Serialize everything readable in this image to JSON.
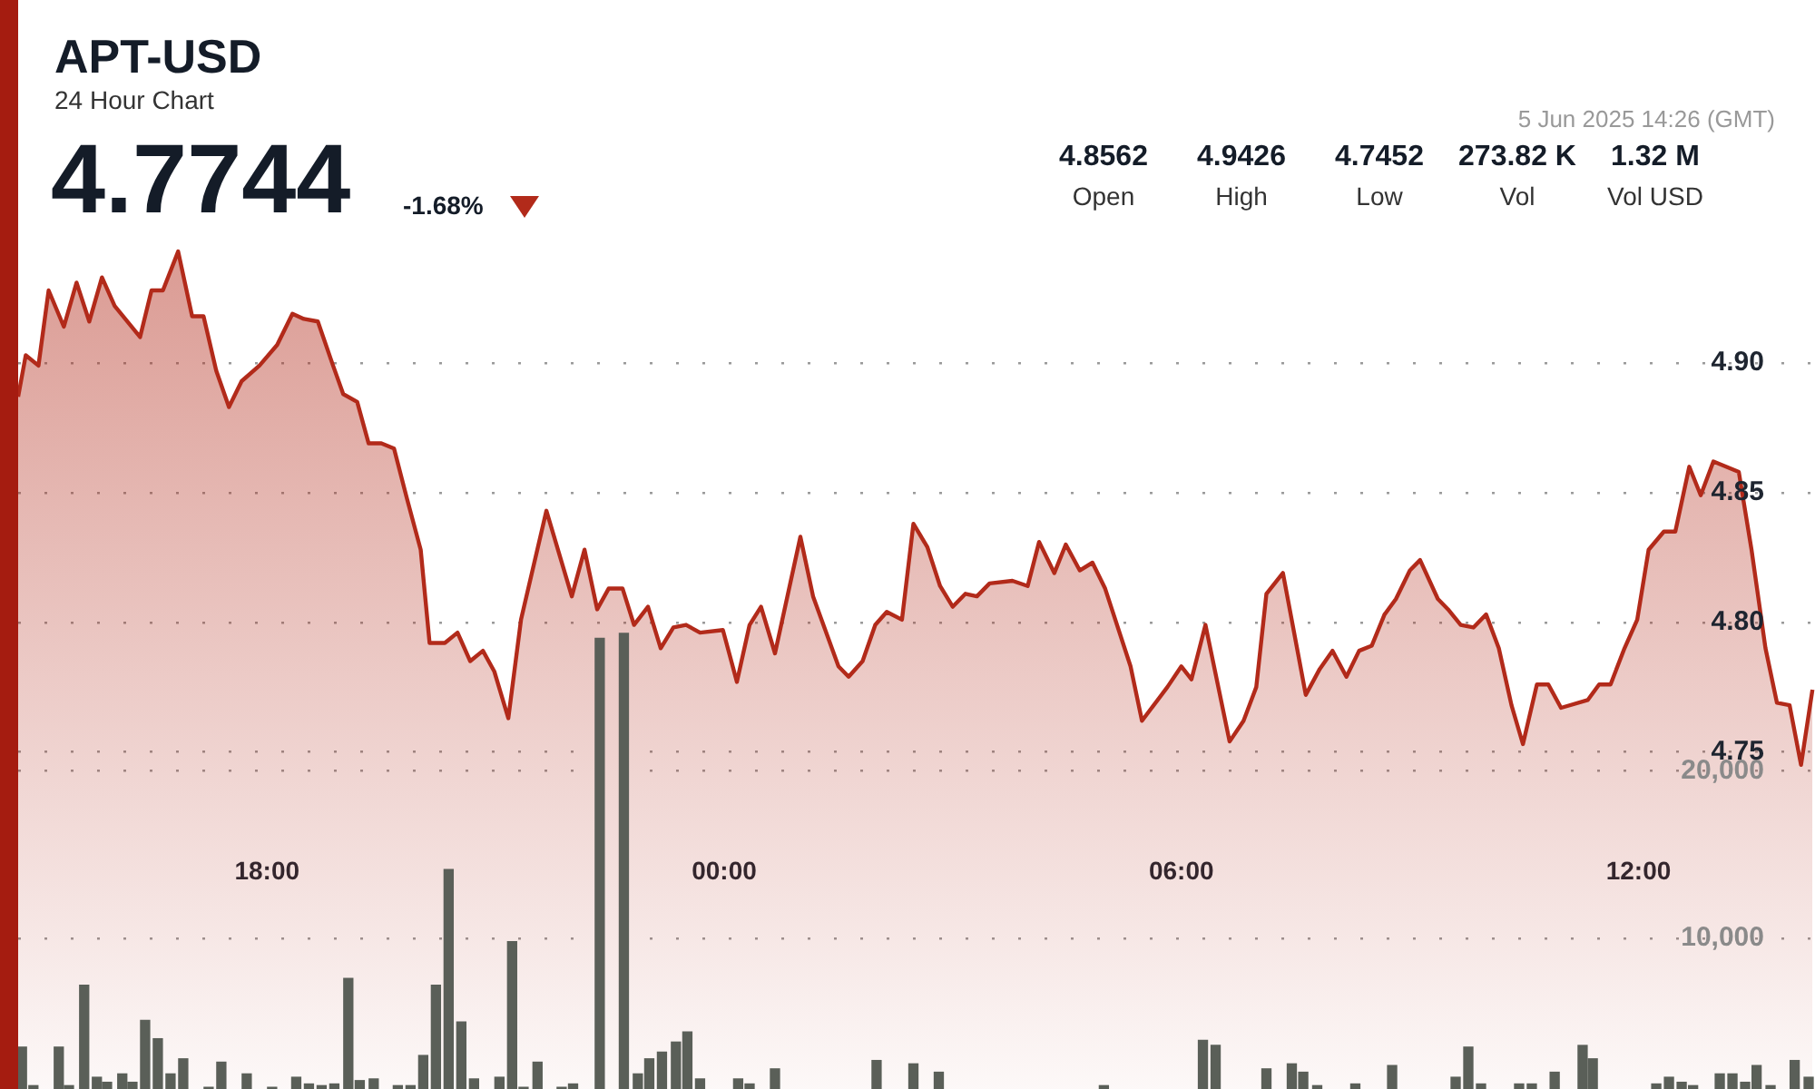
{
  "chart_data": {
    "type": "area",
    "title": "APT-USD",
    "subtitle": "24 Hour Chart",
    "annotations": [
      "4.7744",
      "-1.68%",
      "5 Jun 2025 14:26 (GMT)",
      "4.8562",
      "Open",
      "4.9426",
      "High",
      "4.7452",
      "Low",
      "273.82 K",
      "Vol",
      "1.32 M",
      "Vol USD"
    ],
    "xlim": [
      "2025-06-04T14:44",
      "2025-06-05T14:19"
    ],
    "xticks": [
      {
        "value": "2025-06-04T18:00",
        "label": "18:00"
      },
      {
        "value": "2025-06-05T00:00",
        "label": "00:00"
      },
      {
        "value": "2025-06-05T06:00",
        "label": "06:00"
      },
      {
        "value": "2025-06-05T12:00",
        "label": "12:00"
      }
    ],
    "ylim": [
      4.62,
      5.04
    ],
    "yticks": [
      4.75,
      {
        "value": 4.8,
        "label": "4.80"
      },
      4.85,
      {
        "value": 4.9,
        "label": "4.90"
      }
    ],
    "y2lim": [
      1000,
      66000
    ],
    "y2ticks": [
      {
        "value": 10000,
        "label": "10,000"
      },
      {
        "value": 20000,
        "label": "20,000"
      }
    ],
    "grid": "y",
    "marker": "none",
    "series": [
      {
        "color": "#b22a1a",
        "x": [
          "2025-06-04T14:44",
          "2025-06-04T14:50",
          "2025-06-04T15:00",
          "2025-06-04T15:08",
          "2025-06-04T15:20",
          "2025-06-04T15:30",
          "2025-06-04T15:40",
          "2025-06-04T15:50",
          "2025-06-04T16:00",
          "2025-06-04T16:20",
          "2025-06-04T16:29",
          "2025-06-04T16:38",
          "2025-06-04T16:50",
          "2025-06-04T17:01",
          "2025-06-04T17:10",
          "2025-06-04T17:20",
          "2025-06-04T17:30",
          "2025-06-04T17:40",
          "2025-06-04T17:54",
          "2025-06-04T18:08",
          "2025-06-04T18:20",
          "2025-06-04T18:29",
          "2025-06-04T18:40",
          "2025-06-04T18:52",
          "2025-06-04T19:00",
          "2025-06-04T19:11",
          "2025-06-04T19:20",
          "2025-06-04T19:30",
          "2025-06-04T19:40",
          "2025-06-04T19:50",
          "2025-06-04T20:01",
          "2025-06-04T20:08",
          "2025-06-04T20:20",
          "2025-06-04T20:30",
          "2025-06-04T20:40",
          "2025-06-04T20:50",
          "2025-06-04T20:59",
          "2025-06-04T21:10",
          "2025-06-04T21:20",
          "2025-06-04T21:40",
          "2025-06-04T22:00",
          "2025-06-04T22:10",
          "2025-06-04T22:20",
          "2025-06-04T22:29",
          "2025-06-04T22:40",
          "2025-06-04T22:49",
          "2025-06-04T23:00",
          "2025-06-04T23:10",
          "2025-06-04T23:20",
          "2025-06-04T23:30",
          "2025-06-04T23:41",
          "2025-06-04T23:59",
          "2025-06-05T00:10",
          "2025-06-05T00:20",
          "2025-06-05T00:29",
          "2025-06-05T00:40",
          "2025-06-05T01:00",
          "2025-06-05T01:10",
          "2025-06-05T01:30",
          "2025-06-05T01:38",
          "2025-06-05T01:49",
          "2025-06-05T01:59",
          "2025-06-05T02:08",
          "2025-06-05T02:20",
          "2025-06-05T02:29",
          "2025-06-05T02:40",
          "2025-06-05T02:50",
          "2025-06-05T03:00",
          "2025-06-05T03:10",
          "2025-06-05T03:19",
          "2025-06-05T03:29",
          "2025-06-05T03:47",
          "2025-06-05T03:59",
          "2025-06-05T04:08",
          "2025-06-05T04:20",
          "2025-06-05T04:29",
          "2025-06-05T04:40",
          "2025-06-05T04:50",
          "2025-06-05T05:00",
          "2025-06-05T05:20",
          "2025-06-05T05:29",
          "2025-06-05T05:49",
          "2025-06-05T06:00",
          "2025-06-05T06:08",
          "2025-06-05T06:19",
          "2025-06-05T06:38",
          "2025-06-05T06:49",
          "2025-06-05T06:59",
          "2025-06-05T07:07",
          "2025-06-05T07:20",
          "2025-06-05T07:38",
          "2025-06-05T07:49",
          "2025-06-05T07:59",
          "2025-06-05T08:10",
          "2025-06-05T08:20",
          "2025-06-05T08:30",
          "2025-06-05T08:40",
          "2025-06-05T08:49",
          "2025-06-05T09:00",
          "2025-06-05T09:08",
          "2025-06-05T09:22",
          "2025-06-05T09:30",
          "2025-06-05T09:40",
          "2025-06-05T09:50",
          "2025-06-05T10:00",
          "2025-06-05T10:10",
          "2025-06-05T10:20",
          "2025-06-05T10:29",
          "2025-06-05T10:40",
          "2025-06-05T10:49",
          "2025-06-05T10:59",
          "2025-06-05T11:20",
          "2025-06-05T11:29",
          "2025-06-05T11:38",
          "2025-06-05T11:49",
          "2025-06-05T11:59",
          "2025-06-05T12:08",
          "2025-06-05T12:20",
          "2025-06-05T12:29",
          "2025-06-05T12:40",
          "2025-06-05T12:49",
          "2025-06-05T12:59",
          "2025-06-05T13:19",
          "2025-06-05T13:29",
          "2025-06-05T13:40",
          "2025-06-05T13:49",
          "2025-06-05T13:59",
          "2025-06-05T14:08",
          "2025-06-05T14:17"
        ],
        "values": [
          4.887,
          4.903,
          4.899,
          4.928,
          4.914,
          4.931,
          4.916,
          4.933,
          4.922,
          4.91,
          4.928,
          4.928,
          4.943,
          4.918,
          4.918,
          4.897,
          4.883,
          4.893,
          4.899,
          4.907,
          4.919,
          4.917,
          4.916,
          4.899,
          4.888,
          4.885,
          4.869,
          4.869,
          4.867,
          4.848,
          4.828,
          4.792,
          4.792,
          4.796,
          4.785,
          4.789,
          4.781,
          4.763,
          4.801,
          4.843,
          4.81,
          4.828,
          4.805,
          4.813,
          4.813,
          4.799,
          4.806,
          4.79,
          4.798,
          4.799,
          4.796,
          4.797,
          4.777,
          4.799,
          4.806,
          4.788,
          4.833,
          4.81,
          4.783,
          4.779,
          4.785,
          4.799,
          4.804,
          4.801,
          4.838,
          4.829,
          4.814,
          4.806,
          4.811,
          4.81,
          4.815,
          4.816,
          4.814,
          4.831,
          4.819,
          4.83,
          4.82,
          4.823,
          4.813,
          4.783,
          4.762,
          4.775,
          4.783,
          4.778,
          4.799,
          4.754,
          4.762,
          4.775,
          4.811,
          4.819,
          4.772,
          4.782,
          4.789,
          4.779,
          4.789,
          4.791,
          4.803,
          4.809,
          4.82,
          4.824,
          4.809,
          4.805,
          4.799,
          4.798,
          4.803,
          4.79,
          4.768,
          4.753,
          4.776,
          4.776,
          4.767,
          4.77,
          4.776,
          4.776,
          4.79,
          4.801,
          4.828,
          4.835,
          4.835,
          4.86,
          4.849,
          4.862,
          4.858,
          4.828,
          4.79,
          4.769,
          4.768,
          4.745,
          4.774
        ]
      },
      {
        "type": "bar",
        "axis": "y2",
        "color": "#5a5f58",
        "x": [
          "2025-06-04T14:47",
          "2025-06-04T14:56",
          "2025-06-04T15:16",
          "2025-06-04T15:24",
          "2025-06-04T15:36",
          "2025-06-04T15:46",
          "2025-06-04T15:54",
          "2025-06-04T16:06",
          "2025-06-04T16:14",
          "2025-06-04T16:24",
          "2025-06-04T16:34",
          "2025-06-04T16:44",
          "2025-06-04T16:54",
          "2025-06-04T17:14",
          "2025-06-04T17:24",
          "2025-06-04T17:44",
          "2025-06-04T18:04",
          "2025-06-04T18:23",
          "2025-06-04T18:33",
          "2025-06-04T18:43",
          "2025-06-04T18:53",
          "2025-06-04T19:04",
          "2025-06-04T19:13",
          "2025-06-04T19:24",
          "2025-06-04T19:43",
          "2025-06-04T19:53",
          "2025-06-04T20:03",
          "2025-06-04T20:13",
          "2025-06-04T20:23",
          "2025-06-04T20:33",
          "2025-06-04T20:43",
          "2025-06-04T21:03",
          "2025-06-04T21:13",
          "2025-06-04T21:22",
          "2025-06-04T21:33",
          "2025-06-04T21:52",
          "2025-06-04T22:01",
          "2025-06-04T22:22",
          "2025-06-04T22:41",
          "2025-06-04T22:52",
          "2025-06-04T23:01",
          "2025-06-04T23:11",
          "2025-06-04T23:22",
          "2025-06-04T23:31",
          "2025-06-04T23:41",
          "2025-06-05T00:11",
          "2025-06-05T00:20",
          "2025-06-05T00:40",
          "2025-06-05T02:00",
          "2025-06-05T02:29",
          "2025-06-05T02:49",
          "2025-06-05T04:59",
          "2025-06-05T06:17",
          "2025-06-05T06:27",
          "2025-06-05T07:07",
          "2025-06-05T07:27",
          "2025-06-05T07:36",
          "2025-06-05T07:47",
          "2025-06-05T08:17",
          "2025-06-05T08:46",
          "2025-06-05T09:36",
          "2025-06-05T09:46",
          "2025-06-05T09:56",
          "2025-06-05T10:26",
          "2025-06-05T10:36",
          "2025-06-05T10:54",
          "2025-06-05T11:16",
          "2025-06-05T11:24",
          "2025-06-05T12:14",
          "2025-06-05T12:24",
          "2025-06-05T12:34",
          "2025-06-05T12:43",
          "2025-06-05T13:04",
          "2025-06-05T13:14",
          "2025-06-05T13:24",
          "2025-06-05T13:33",
          "2025-06-05T13:44",
          "2025-06-05T14:03",
          "2025-06-05T14:14"
        ],
        "values": [
          3500,
          1200,
          3500,
          1200,
          7200,
          1700,
          1400,
          1900,
          1400,
          5100,
          4000,
          1900,
          2800,
          1100,
          2600,
          1900,
          1100,
          1700,
          1300,
          1200,
          1300,
          7600,
          1500,
          1600,
          1200,
          1200,
          3000,
          7200,
          14100,
          5000,
          1600,
          1700,
          9800,
          1100,
          2600,
          1100,
          1300,
          27900,
          28200,
          1900,
          2800,
          3200,
          3800,
          4400,
          1600,
          1600,
          1300,
          2200,
          2700,
          2500,
          2000,
          1200,
          3900,
          3600,
          2200,
          2500,
          2000,
          1200,
          1300,
          2400,
          1700,
          3500,
          1300,
          1300,
          1300,
          2000,
          3600,
          2800,
          1300,
          1700,
          1400,
          1200,
          1900,
          1900,
          1400,
          2400,
          1200,
          2700,
          1700
        ]
      }
    ]
  }
}
